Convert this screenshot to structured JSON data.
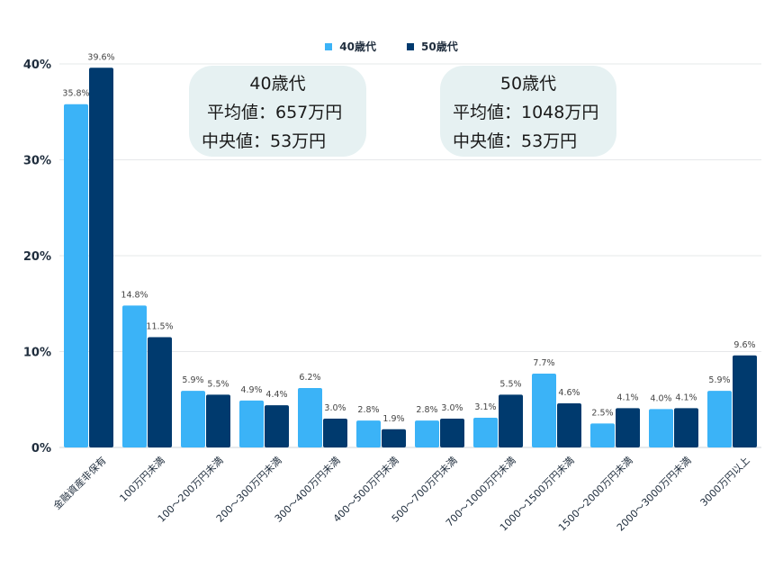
{
  "legend": [
    {
      "label": "40歳代",
      "color": "#3bb3f7"
    },
    {
      "label": "50歳代",
      "color": "#003a6e"
    }
  ],
  "info_boxes": [
    {
      "title": "40歳代",
      "mean_line": "平均値：657万円",
      "median_line": "中央値：53万円"
    },
    {
      "title": "50歳代",
      "mean_line": "平均値：1048万円",
      "median_line": "中央値：53万円"
    }
  ],
  "chart_data": {
    "type": "bar",
    "title": "",
    "xlabel": "",
    "ylabel": "",
    "ylim": [
      0,
      40
    ],
    "yticks": [
      "0%",
      "10%",
      "20%",
      "30%",
      "40%"
    ],
    "grid": true,
    "legend_position": "top-center",
    "categories": [
      "金融資産非保有",
      "100万円未満",
      "100～200万円未満",
      "200～300万円未満",
      "300～400万円未満",
      "400～500万円未満",
      "500～700万円未満",
      "700～1000万円未満",
      "1000～1500万円未満",
      "1500～2000万円未満",
      "2000～3000万円未満",
      "3000万円以上"
    ],
    "series": [
      {
        "name": "40歳代",
        "color": "#3bb3f7",
        "values": [
          35.8,
          14.8,
          5.9,
          4.9,
          6.2,
          2.8,
          2.8,
          3.1,
          7.7,
          2.5,
          4.0,
          5.9
        ]
      },
      {
        "name": "50歳代",
        "color": "#003a6e",
        "values": [
          39.6,
          11.5,
          5.5,
          4.4,
          3.0,
          1.9,
          3.0,
          5.5,
          4.6,
          4.1,
          4.1,
          9.6
        ]
      }
    ],
    "data_label_format": "{v}%"
  }
}
